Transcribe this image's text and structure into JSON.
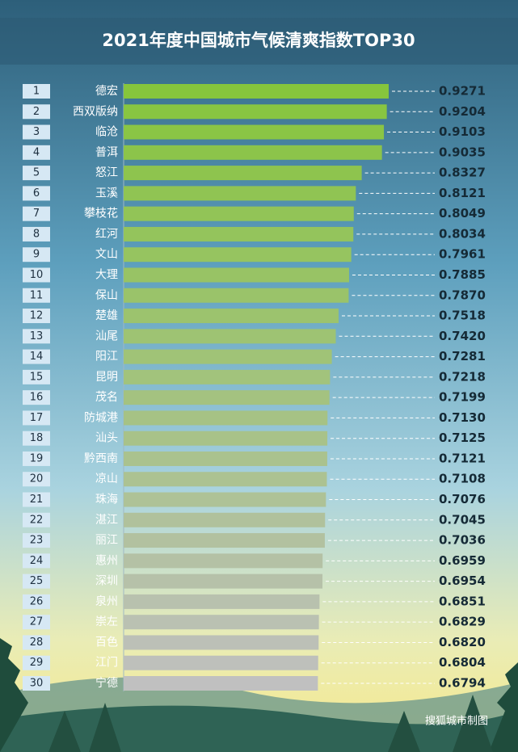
{
  "chart_data": {
    "type": "bar",
    "orientation": "horizontal",
    "title": "2021年度中国城市气候清爽指数TOP30",
    "ranks": [
      1,
      2,
      3,
      4,
      5,
      6,
      7,
      8,
      9,
      10,
      11,
      12,
      13,
      14,
      15,
      16,
      17,
      18,
      19,
      20,
      21,
      22,
      23,
      24,
      25,
      26,
      27,
      28,
      29,
      30
    ],
    "categories": [
      "德宏",
      "西双版纳",
      "临沧",
      "普洱",
      "怒江",
      "玉溪",
      "攀枝花",
      "红河",
      "文山",
      "大理",
      "保山",
      "楚雄",
      "汕尾",
      "阳江",
      "昆明",
      "茂名",
      "防城港",
      "汕头",
      "黔西南",
      "凉山",
      "珠海",
      "湛江",
      "丽江",
      "惠州",
      "深圳",
      "泉州",
      "崇左",
      "百色",
      "江门",
      "宁德"
    ],
    "values": [
      0.9271,
      0.9204,
      0.9103,
      0.9035,
      0.8327,
      0.8121,
      0.8049,
      0.8034,
      0.7961,
      0.7885,
      0.787,
      0.7518,
      0.742,
      0.7281,
      0.7218,
      0.7199,
      0.713,
      0.7125,
      0.7121,
      0.7108,
      0.7076,
      0.7045,
      0.7036,
      0.6959,
      0.6954,
      0.6851,
      0.6829,
      0.682,
      0.6804,
      0.6794
    ],
    "value_labels": [
      "0.9271",
      "0.9204",
      "0.9103",
      "0.9035",
      "0.8327",
      "0.8121",
      "0.8049",
      "0.8034",
      "0.7961",
      "0.7885",
      "0.7870",
      "0.7518",
      "0.7420",
      "0.7281",
      "0.7218",
      "0.7199",
      "0.7130",
      "0.7125",
      "0.7121",
      "0.7108",
      "0.7076",
      "0.7045",
      "0.7036",
      "0.6959",
      "0.6954",
      "0.6851",
      "0.6829",
      "0.6820",
      "0.6804",
      "0.6794"
    ],
    "bar_colors": [
      "#86c53c",
      "#c0c0c0"
    ],
    "source": "搜狐城市制图"
  }
}
